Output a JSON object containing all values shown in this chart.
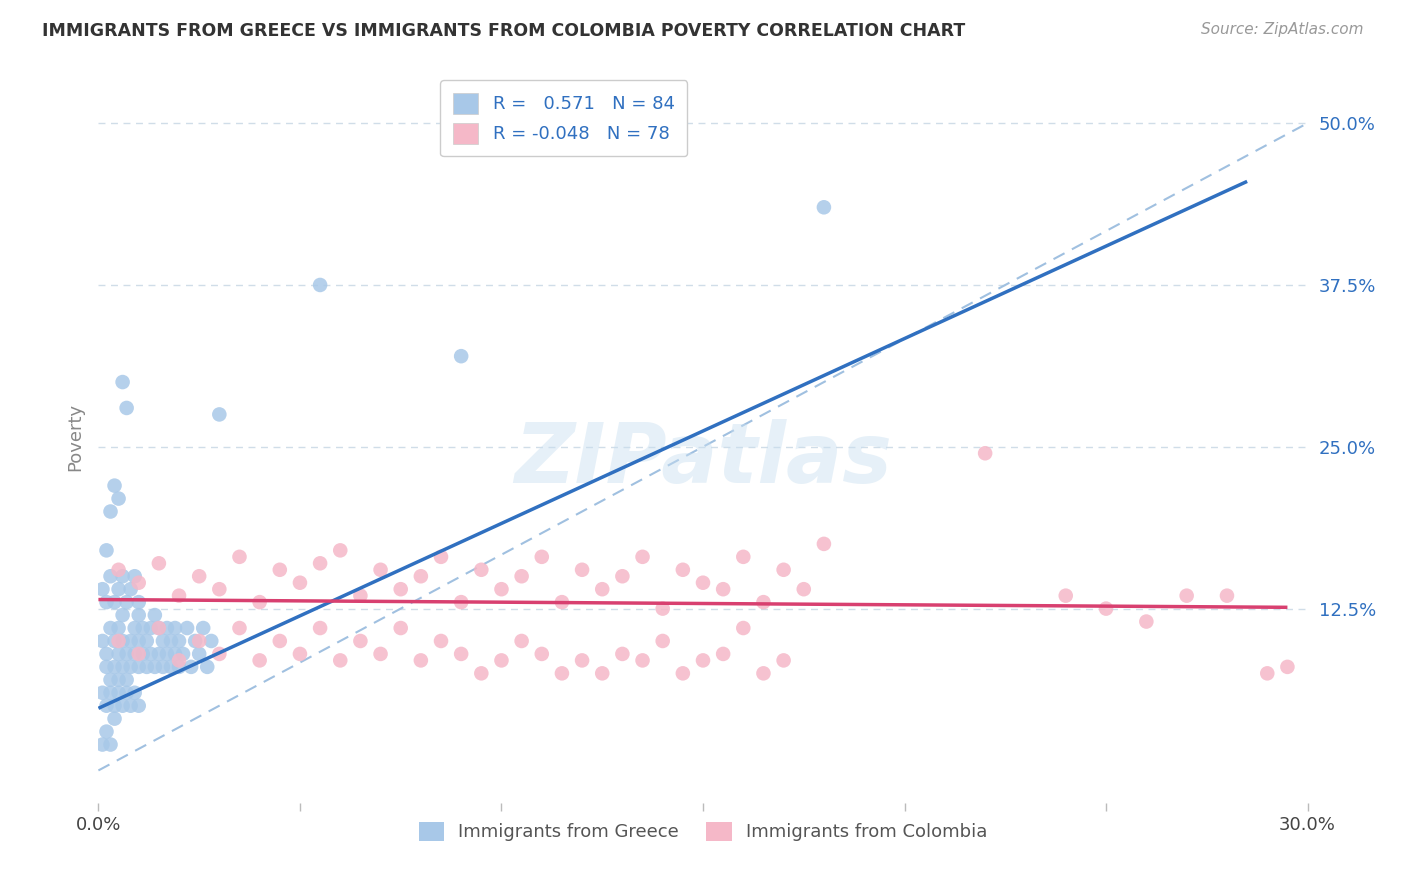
{
  "title": "IMMIGRANTS FROM GREECE VS IMMIGRANTS FROM COLOMBIA POVERTY CORRELATION CHART",
  "source": "Source: ZipAtlas.com",
  "ylabel": "Poverty",
  "ytick_labels": [
    "12.5%",
    "25.0%",
    "37.5%",
    "50.0%"
  ],
  "ytick_values": [
    0.125,
    0.25,
    0.375,
    0.5
  ],
  "xlim": [
    0.0,
    0.3
  ],
  "ylim": [
    -0.025,
    0.54
  ],
  "greece_color": "#a8c8e8",
  "colombia_color": "#f5b8c8",
  "greece_line_color": "#3070c0",
  "colombia_line_color": "#d84070",
  "diag_line_color": "#a0c0e0",
  "legend_greece_R": "0.571",
  "legend_greece_N": "84",
  "legend_colombia_R": "-0.048",
  "legend_colombia_N": "78",
  "watermark": "ZIPatlas",
  "legend_text_color": "#3070c0",
  "ylabel_color": "#888888",
  "title_color": "#333333",
  "source_color": "#999999",
  "grid_color": "#d0dde8",
  "tick_label_color": "#444444",
  "right_tick_color": "#3070c0",
  "greece_trend_x": [
    0.0,
    0.285
  ],
  "greece_trend_y": [
    0.048,
    0.455
  ],
  "colombia_trend_x": [
    0.0,
    0.295
  ],
  "colombia_trend_y": [
    0.132,
    0.126
  ],
  "diag_line_x": [
    0.0,
    0.3
  ],
  "diag_line_y": [
    0.0,
    0.5
  ],
  "greece_scatter_x": [
    0.001,
    0.002,
    0.002,
    0.003,
    0.003,
    0.004,
    0.004,
    0.005,
    0.005,
    0.005,
    0.006,
    0.006,
    0.006,
    0.007,
    0.007,
    0.008,
    0.008,
    0.009,
    0.009,
    0.01,
    0.01,
    0.01,
    0.011,
    0.011,
    0.012,
    0.012,
    0.013,
    0.013,
    0.014,
    0.014,
    0.015,
    0.015,
    0.016,
    0.016,
    0.017,
    0.017,
    0.018,
    0.018,
    0.019,
    0.019,
    0.02,
    0.02,
    0.021,
    0.022,
    0.023,
    0.024,
    0.025,
    0.026,
    0.027,
    0.028,
    0.001,
    0.002,
    0.003,
    0.004,
    0.005,
    0.006,
    0.007,
    0.008,
    0.009,
    0.01,
    0.001,
    0.002,
    0.003,
    0.004,
    0.005,
    0.006,
    0.007,
    0.008,
    0.009,
    0.01,
    0.001,
    0.002,
    0.003,
    0.004,
    0.002,
    0.003,
    0.004,
    0.005,
    0.006,
    0.007,
    0.03,
    0.055,
    0.18,
    0.09
  ],
  "greece_scatter_y": [
    0.1,
    0.09,
    0.08,
    0.11,
    0.07,
    0.1,
    0.08,
    0.09,
    0.11,
    0.07,
    0.1,
    0.08,
    0.12,
    0.09,
    0.07,
    0.1,
    0.08,
    0.11,
    0.09,
    0.1,
    0.08,
    0.12,
    0.09,
    0.11,
    0.08,
    0.1,
    0.09,
    0.11,
    0.08,
    0.12,
    0.09,
    0.11,
    0.08,
    0.1,
    0.09,
    0.11,
    0.08,
    0.1,
    0.09,
    0.11,
    0.08,
    0.1,
    0.09,
    0.11,
    0.08,
    0.1,
    0.09,
    0.11,
    0.08,
    0.1,
    0.06,
    0.05,
    0.06,
    0.05,
    0.06,
    0.05,
    0.06,
    0.05,
    0.06,
    0.05,
    0.14,
    0.13,
    0.15,
    0.13,
    0.14,
    0.15,
    0.13,
    0.14,
    0.15,
    0.13,
    0.02,
    0.03,
    0.02,
    0.04,
    0.17,
    0.2,
    0.22,
    0.21,
    0.3,
    0.28,
    0.275,
    0.375,
    0.435,
    0.32
  ],
  "colombia_scatter_x": [
    0.005,
    0.01,
    0.015,
    0.02,
    0.025,
    0.03,
    0.035,
    0.04,
    0.045,
    0.05,
    0.055,
    0.06,
    0.065,
    0.07,
    0.075,
    0.08,
    0.085,
    0.09,
    0.095,
    0.1,
    0.105,
    0.11,
    0.115,
    0.12,
    0.125,
    0.13,
    0.135,
    0.14,
    0.145,
    0.15,
    0.155,
    0.16,
    0.165,
    0.17,
    0.175,
    0.18,
    0.005,
    0.01,
    0.015,
    0.02,
    0.025,
    0.03,
    0.035,
    0.04,
    0.045,
    0.05,
    0.055,
    0.06,
    0.065,
    0.07,
    0.075,
    0.08,
    0.085,
    0.09,
    0.095,
    0.1,
    0.105,
    0.11,
    0.115,
    0.12,
    0.125,
    0.13,
    0.135,
    0.14,
    0.145,
    0.15,
    0.155,
    0.16,
    0.165,
    0.17,
    0.24,
    0.26,
    0.28,
    0.295,
    0.22,
    0.25,
    0.27,
    0.29
  ],
  "colombia_scatter_y": [
    0.155,
    0.145,
    0.16,
    0.135,
    0.15,
    0.14,
    0.165,
    0.13,
    0.155,
    0.145,
    0.16,
    0.17,
    0.135,
    0.155,
    0.14,
    0.15,
    0.165,
    0.13,
    0.155,
    0.14,
    0.15,
    0.165,
    0.13,
    0.155,
    0.14,
    0.15,
    0.165,
    0.125,
    0.155,
    0.145,
    0.14,
    0.165,
    0.13,
    0.155,
    0.14,
    0.175,
    0.1,
    0.09,
    0.11,
    0.085,
    0.1,
    0.09,
    0.11,
    0.085,
    0.1,
    0.09,
    0.11,
    0.085,
    0.1,
    0.09,
    0.11,
    0.085,
    0.1,
    0.09,
    0.075,
    0.085,
    0.1,
    0.09,
    0.075,
    0.085,
    0.075,
    0.09,
    0.085,
    0.1,
    0.075,
    0.085,
    0.09,
    0.11,
    0.075,
    0.085,
    0.135,
    0.115,
    0.135,
    0.08,
    0.245,
    0.125,
    0.135,
    0.075
  ]
}
